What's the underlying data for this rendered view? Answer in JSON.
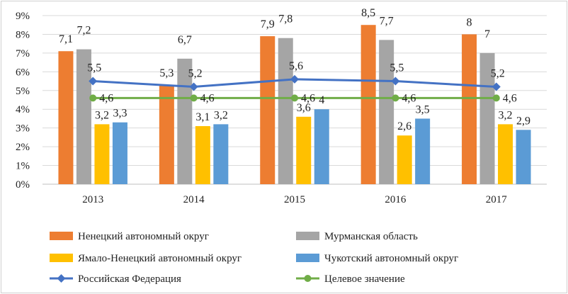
{
  "chart_data": {
    "type": "bar",
    "categories": [
      "2013",
      "2014",
      "2015",
      "2016",
      "2017"
    ],
    "y_tick_labels": [
      "0%",
      "1%",
      "2%",
      "3%",
      "4%",
      "5%",
      "6%",
      "7%",
      "8%",
      "9%"
    ],
    "ylim": [
      0,
      9
    ],
    "title": "",
    "xlabel": "",
    "ylabel": "",
    "grid": true,
    "legend_position": "bottom",
    "series": [
      {
        "name": "Ненецкий автономный округ",
        "kind": "bar",
        "color": "#ED7D31",
        "values": [
          7.1,
          5.3,
          7.9,
          8.5,
          8
        ],
        "labels": [
          "7,1",
          "5,3",
          "7,9",
          "8,5",
          "8"
        ]
      },
      {
        "name": "Мурманская область",
        "kind": "bar",
        "color": "#A5A5A5",
        "values": [
          7.2,
          6.7,
          7.8,
          7.7,
          7
        ],
        "labels": [
          "7,2",
          "6,7",
          "7,8",
          "7,7",
          "7"
        ]
      },
      {
        "name": "Ямало-Ненецкий автономный округ",
        "kind": "bar",
        "color": "#FFC000",
        "values": [
          3.2,
          3.1,
          3.6,
          2.6,
          3.2
        ],
        "labels": [
          "3,2",
          "3,1",
          "3,6",
          "2,6",
          "3,2"
        ]
      },
      {
        "name": "Чукотский автономный округ",
        "kind": "bar",
        "color": "#5B9BD5",
        "values": [
          3.3,
          3.2,
          4,
          3.5,
          2.9
        ],
        "labels": [
          "3,3",
          "3,2",
          "4",
          "3,5",
          "2,9"
        ]
      },
      {
        "name": "Российская Федерация",
        "kind": "line",
        "marker": "diamond",
        "color": "#4472C4",
        "values": [
          5.5,
          5.2,
          5.6,
          5.5,
          5.2
        ],
        "labels": [
          "5,5",
          "5,2",
          "5,6",
          "5,5",
          "5,2"
        ]
      },
      {
        "name": "Целевое значение",
        "kind": "line",
        "marker": "circle",
        "color": "#70AD47",
        "values": [
          4.6,
          4.6,
          4.6,
          4.6,
          4.6
        ],
        "labels": [
          "4,6",
          "4,6",
          "4,6",
          "4,6",
          "4,6"
        ]
      }
    ]
  }
}
